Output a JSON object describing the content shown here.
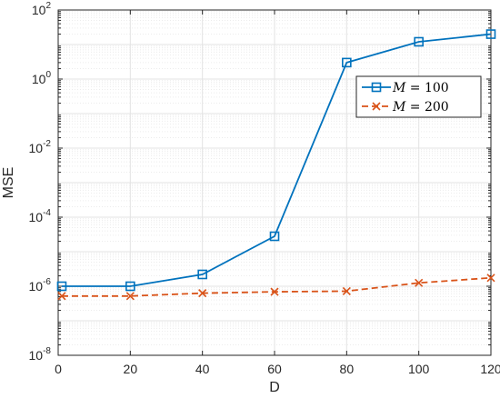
{
  "chart_data": {
    "type": "line",
    "title": "",
    "xlabel": "D",
    "ylabel": "MSE",
    "xlim": [
      0,
      120
    ],
    "ylim": [
      1e-08,
      100
    ],
    "yscale": "log",
    "grid": true,
    "legend_position": "top-right",
    "x_ticks": [
      "0",
      "20",
      "40",
      "60",
      "80",
      "100",
      "120"
    ],
    "y_ticks": [
      {
        "base": "10",
        "exp": "-8"
      },
      {
        "base": "10",
        "exp": "-6"
      },
      {
        "base": "10",
        "exp": "-4"
      },
      {
        "base": "10",
        "exp": "-2"
      },
      {
        "base": "10",
        "exp": "0"
      },
      {
        "base": "10",
        "exp": "2"
      }
    ],
    "series": [
      {
        "name": "M = 100",
        "legend_var": "M",
        "legend_rest": " = 100",
        "color": "#0072BD",
        "line_style": "solid",
        "marker": "square",
        "x": [
          1,
          20,
          40,
          60,
          80,
          100,
          120
        ],
        "y": [
          1e-06,
          1e-06,
          2.2e-06,
          2.8e-05,
          3.0,
          12.0,
          20.0
        ]
      },
      {
        "name": "M = 200",
        "legend_var": "M",
        "legend_rest": " = 200",
        "color": "#D95319",
        "line_style": "dashed",
        "marker": "x",
        "x": [
          1,
          20,
          40,
          60,
          80,
          100,
          120
        ],
        "y": [
          5.2e-07,
          5.2e-07,
          6.3e-07,
          6.9e-07,
          7.2e-07,
          1.25e-06,
          1.75e-06
        ]
      }
    ]
  }
}
